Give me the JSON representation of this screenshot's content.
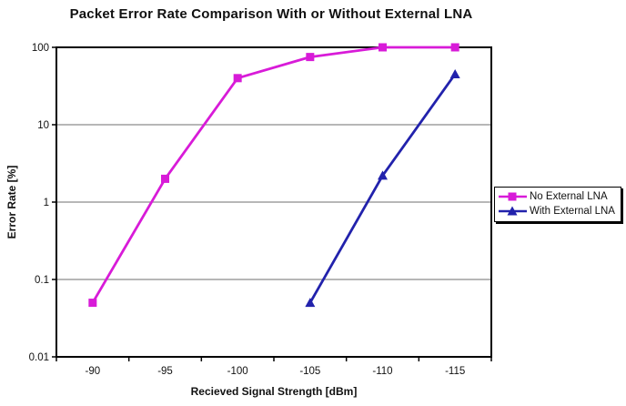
{
  "chart_data": {
    "type": "line",
    "title": "Packet Error Rate Comparison With or Without External LNA",
    "xlabel": "Recieved Signal Strength [dBm]",
    "ylabel": "Error Rate [%]",
    "x_categories": [
      -90,
      -95,
      -100,
      -105,
      -110,
      -115
    ],
    "x_axis_type": "category",
    "y_scale": "log",
    "ylim": [
      0.01,
      100
    ],
    "y_ticks": [
      100,
      10,
      1,
      0.1,
      0.01
    ],
    "grid": {
      "horizontal_major": true,
      "vertical": false,
      "color": "#8c8c8c"
    },
    "axis_color": "#000000",
    "legend": {
      "position": "right",
      "border_color": "#000000",
      "background": "#ffffff",
      "shadow": true
    },
    "series": [
      {
        "name": "No External LNA",
        "color": "#D81BD8",
        "marker": "square",
        "x": [
          -90,
          -95,
          -100,
          -105,
          -110,
          -115
        ],
        "values": [
          0.05,
          2,
          40,
          75,
          100,
          100
        ]
      },
      {
        "name": "With External LNA",
        "color": "#2222AC",
        "marker": "triangle",
        "x": [
          -105,
          -110,
          -115
        ],
        "values": [
          0.05,
          2.2,
          45
        ]
      }
    ]
  }
}
